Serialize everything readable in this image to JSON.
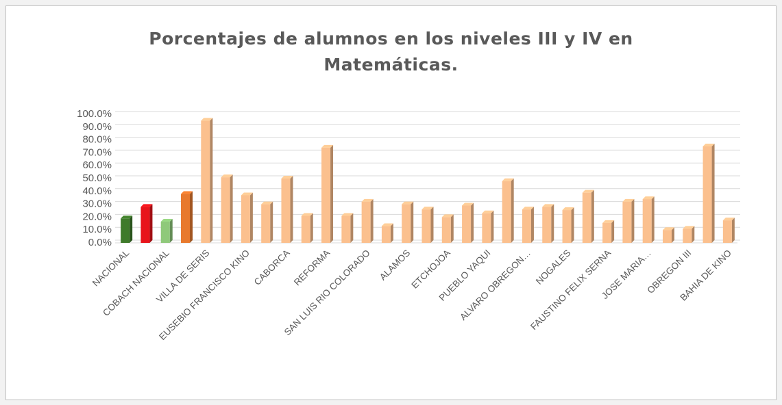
{
  "chart_data": {
    "type": "bar3d",
    "title": "Porcentajes de alumnos en los niveles III y IV en Matemáticas.",
    "categories": [
      "NACIONAL",
      null,
      "COBACH NACIONAL",
      null,
      "VILLA DE SERIS",
      null,
      "EUSEBIO FRANCISCO KINO",
      null,
      "CABORCA",
      null,
      "REFORMA",
      null,
      "SAN LUIS RIO COLORADO",
      null,
      "ALAMOS",
      null,
      "ETCHOJOA",
      null,
      "PUEBLO YAQUI",
      null,
      "ALVARO OBREGON…",
      null,
      "NOGALES",
      null,
      "FAUSTINO FELIX SERNA",
      null,
      "JOSE MARIA…",
      null,
      "OBREGON III",
      null,
      "BAHIA DE KINO"
    ],
    "values": [
      19,
      28,
      16.5,
      38,
      95,
      51,
      37,
      30,
      50,
      21,
      74,
      21,
      32,
      13,
      30,
      26,
      20,
      29,
      23,
      48,
      26,
      28,
      25.5,
      39,
      15.5,
      32,
      34,
      10,
      11,
      75,
      17.5
    ],
    "colors": [
      "#3e7a2a",
      "#e8141b",
      "#8fc97a",
      "#e8792d",
      "#fbc08e",
      "#fbc08e",
      "#fbc08e",
      "#fbc08e",
      "#fbc08e",
      "#fbc08e",
      "#fbc08e",
      "#fbc08e",
      "#fbc08e",
      "#fbc08e",
      "#fbc08e",
      "#fbc08e",
      "#fbc08e",
      "#fbc08e",
      "#fbc08e",
      "#fbc08e",
      "#fbc08e",
      "#fbc08e",
      "#fbc08e",
      "#fbc08e",
      "#fbc08e",
      "#fbc08e",
      "#fbc08e",
      "#fbc08e",
      "#fbc08e",
      "#fbc08e",
      "#fbc08e"
    ],
    "ylim": [
      0,
      100
    ],
    "yticks": [
      {
        "value": 0,
        "label": "0.0%"
      },
      {
        "value": 10,
        "label": "10.0%"
      },
      {
        "value": 20,
        "label": "20.0%"
      },
      {
        "value": 30,
        "label": "30.0%"
      },
      {
        "value": 40,
        "label": "40.0%"
      },
      {
        "value": 50,
        "label": "50.0%"
      },
      {
        "value": 60,
        "label": "60.0%"
      },
      {
        "value": 70,
        "label": "70.0%"
      },
      {
        "value": 80,
        "label": "80.0%"
      },
      {
        "value": 90,
        "label": "90.0%"
      },
      {
        "value": 100,
        "label": "100.0%"
      }
    ],
    "grid": true
  }
}
